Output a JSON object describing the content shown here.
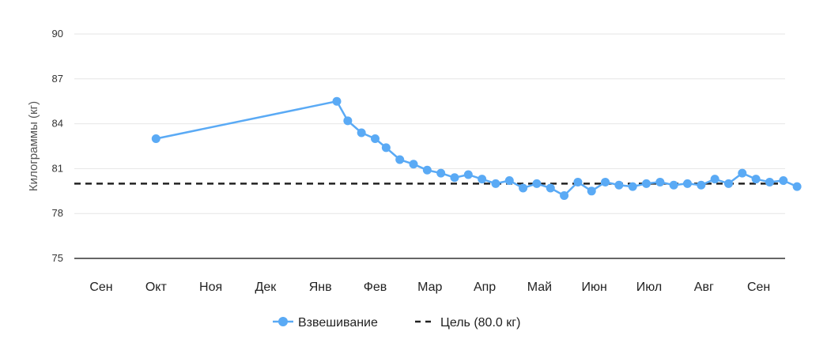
{
  "chart_data": {
    "type": "line",
    "ylabel": "Килограммы (кг)",
    "ylim": [
      75,
      90
    ],
    "yticks": [
      "75",
      "78",
      "81",
      "84",
      "87",
      "90"
    ],
    "categories": [
      "Сен",
      "Окт",
      "Ноя",
      "Дек",
      "Янв",
      "Фев",
      "Мар",
      "Апр",
      "Май",
      "Июн",
      "Июл",
      "Авг",
      "Сен"
    ],
    "grid": true,
    "legend_position": "bottom",
    "series": [
      {
        "name": "Взвешивание",
        "color": "#5aaaf5",
        "points": [
          [
            1.0,
            83.0
          ],
          [
            4.3,
            85.5
          ],
          [
            4.5,
            84.2
          ],
          [
            4.75,
            83.4
          ],
          [
            5.0,
            83.0
          ],
          [
            5.2,
            82.4
          ],
          [
            5.45,
            81.6
          ],
          [
            5.7,
            81.3
          ],
          [
            5.95,
            80.9
          ],
          [
            6.2,
            80.7
          ],
          [
            6.45,
            80.4
          ],
          [
            6.7,
            80.6
          ],
          [
            6.95,
            80.3
          ],
          [
            7.2,
            80.0
          ],
          [
            7.45,
            80.2
          ],
          [
            7.7,
            79.7
          ],
          [
            7.95,
            80.0
          ],
          [
            8.2,
            79.7
          ],
          [
            8.45,
            79.2
          ],
          [
            8.7,
            80.1
          ],
          [
            8.95,
            79.5
          ],
          [
            9.2,
            80.1
          ],
          [
            9.45,
            79.9
          ],
          [
            9.7,
            79.8
          ],
          [
            9.95,
            80.0
          ],
          [
            10.2,
            80.1
          ],
          [
            10.45,
            79.9
          ],
          [
            10.7,
            80.0
          ],
          [
            10.95,
            79.9
          ],
          [
            11.2,
            80.3
          ],
          [
            11.45,
            80.0
          ],
          [
            11.7,
            80.7
          ],
          [
            11.95,
            80.3
          ],
          [
            12.2,
            80.1
          ],
          [
            12.45,
            80.2
          ],
          [
            12.7,
            79.8
          ]
        ]
      },
      {
        "name": "Цель (80.0 кг)",
        "color": "#222222",
        "dashed": true,
        "value": 80.0
      }
    ]
  }
}
